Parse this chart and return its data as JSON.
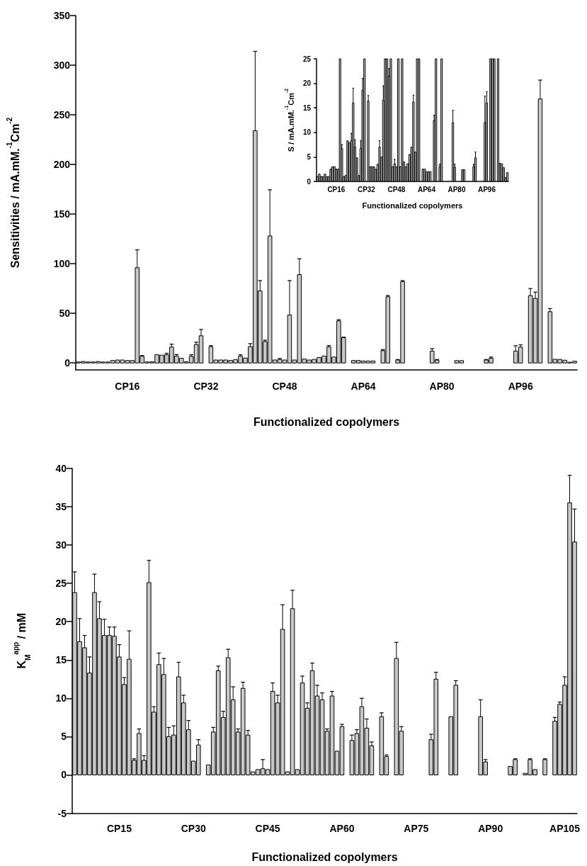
{
  "chart_data": [
    {
      "type": "bar",
      "xlabel": "Functionalized copolymers",
      "ylabel": "Sensitivities / mA.mM.$^{-1}$Cm$^{-2}$",
      "color": "#c8c8c8",
      "ylim": [
        -7,
        350
      ],
      "yticks": [
        0,
        50,
        100,
        150,
        200,
        250,
        300,
        350
      ],
      "categories": [
        null,
        null,
        null,
        null,
        null,
        null,
        null,
        null,
        null,
        null,
        "CP16",
        null,
        null,
        null,
        null,
        null,
        null,
        null,
        null,
        null,
        null,
        null,
        null,
        null,
        null,
        null,
        "CP32",
        null,
        null,
        null,
        null,
        null,
        null,
        null,
        null,
        null,
        null,
        null,
        null,
        null,
        null,
        null,
        "CP48",
        null,
        null,
        null,
        null,
        null,
        null,
        null,
        null,
        null,
        null,
        null,
        null,
        null,
        null,
        null,
        "AP64",
        null,
        null,
        null,
        null,
        null,
        null,
        null,
        null,
        null,
        null,
        null,
        null,
        null,
        null,
        null,
        "AP80",
        null,
        null,
        null,
        null,
        null,
        null,
        null,
        null,
        null,
        null,
        null,
        null,
        null,
        null,
        null,
        "AP96",
        null,
        null,
        null,
        null,
        null,
        null,
        null,
        null,
        null,
        null,
        null
      ],
      "values": [
        1,
        1.5,
        1,
        1,
        1.5,
        1,
        1,
        2.5,
        3,
        3,
        2.5,
        2.5,
        96,
        6.7,
        1,
        1.2,
        8.3,
        7.9,
        8.3,
        16,
        7,
        4.8,
        1.2,
        6.7,
        18.6,
        27.4,
        null,
        16.4,
        3,
        3,
        3,
        2.5,
        3.5,
        7,
        5,
        16.5,
        234,
        72.6,
        21.5,
        128,
        3,
        3.6,
        3,
        48.3,
        3,
        89,
        4,
        3,
        3.6,
        5.5,
        7,
        16.2,
        6,
        42.4,
        25.5,
        null,
        2.5,
        2.5,
        2,
        2,
        2,
        null,
        12.4,
        66.7,
        null,
        3,
        82,
        null,
        null,
        null,
        null,
        null,
        12,
        2.9,
        null,
        null,
        null,
        2.4,
        2.4,
        null,
        null,
        null,
        null,
        3,
        4.8,
        null,
        null,
        null,
        null,
        12,
        16,
        null,
        67.9,
        65,
        266,
        null,
        51.7,
        3.7,
        3.6,
        2.8,
        0.8,
        1.8
      ],
      "errors": [
        null,
        null,
        null,
        null,
        null,
        null,
        null,
        null,
        null,
        null,
        null,
        null,
        [
          96,
          114
        ],
        [
          6.7,
          7.5
        ],
        null,
        null,
        null,
        null,
        [
          8.3,
          9.8
        ],
        [
          16,
          19
        ],
        [
          7,
          8.5
        ],
        null,
        null,
        [
          6.7,
          8.3
        ],
        [
          18.6,
          21
        ],
        [
          27.4,
          33.8
        ],
        null,
        [
          16.4,
          17.5
        ],
        null,
        null,
        null,
        null,
        null,
        [
          7,
          8.3
        ],
        null,
        [
          16.5,
          19.5
        ],
        [
          234,
          314
        ],
        [
          72.6,
          83
        ],
        [
          21.5,
          23
        ],
        [
          128,
          174.5
        ],
        null,
        [
          3.6,
          4.5
        ],
        null,
        [
          48.3,
          83
        ],
        null,
        [
          89,
          105
        ],
        null,
        null,
        null,
        null,
        null,
        [
          16.2,
          17.6
        ],
        null,
        [
          42.4,
          43.6
        ],
        [
          25.5,
          26
        ],
        null,
        null,
        null,
        null,
        null,
        null,
        null,
        [
          12.4,
          13.5
        ],
        [
          66.7,
          68
        ],
        null,
        [
          3,
          3.5
        ],
        [
          82,
          83
        ],
        null,
        null,
        null,
        null,
        null,
        [
          12,
          14.5
        ],
        [
          2.9,
          3.5
        ],
        null,
        null,
        null,
        null,
        null,
        null,
        null,
        null,
        null,
        [
          3,
          3.5
        ],
        [
          4.8,
          6
        ],
        null,
        null,
        null,
        null,
        [
          12,
          17.4
        ],
        [
          16,
          18.3
        ],
        null,
        [
          67.9,
          75
        ],
        [
          65,
          71.4
        ],
        [
          266,
          285
        ],
        null,
        [
          51.7,
          54.8
        ],
        null,
        null,
        null,
        null,
        null
      ]
    },
    {
      "type": "bar",
      "xlabel": "Functionalized copolymers",
      "ylabel": "S / mA.mM.$^{-1}$Cm$^{-2}$",
      "color": "#c8c8c8",
      "ylim": [
        0,
        25
      ],
      "yticks": [
        0,
        5,
        10,
        15,
        20,
        25
      ],
      "categories": [
        null,
        null,
        null,
        null,
        null,
        null,
        null,
        null,
        null,
        null,
        "CP16",
        null,
        null,
        null,
        null,
        null,
        null,
        null,
        null,
        null,
        null,
        null,
        null,
        null,
        null,
        null,
        "CP32",
        null,
        null,
        null,
        null,
        null,
        null,
        null,
        null,
        null,
        null,
        null,
        null,
        null,
        null,
        null,
        "CP48",
        null,
        null,
        null,
        null,
        null,
        null,
        null,
        null,
        null,
        null,
        null,
        null,
        null,
        null,
        null,
        "AP64",
        null,
        null,
        null,
        null,
        null,
        null,
        null,
        null,
        null,
        null,
        null,
        null,
        null,
        null,
        null,
        "AP80",
        null,
        null,
        null,
        null,
        null,
        null,
        null,
        null,
        null,
        null,
        null,
        null,
        null,
        null,
        null,
        "AP96",
        null,
        null,
        null,
        null,
        null,
        null,
        null,
        null,
        null,
        null,
        null
      ],
      "values": [
        1,
        1.5,
        1,
        1,
        1.5,
        1,
        1,
        2.5,
        3,
        3,
        2.5,
        2.5,
        25,
        6.7,
        1,
        1.2,
        8.3,
        7.9,
        8.3,
        16,
        7,
        4.8,
        1.2,
        6.7,
        18.6,
        25,
        null,
        16.4,
        3,
        3,
        3,
        2.5,
        3.5,
        7,
        5,
        16.5,
        25,
        25,
        21.5,
        25,
        3,
        3.6,
        3,
        25,
        3,
        25,
        4,
        3,
        3.6,
        5.5,
        7,
        16.2,
        6,
        25,
        25,
        null,
        2.5,
        2.5,
        2,
        2,
        2,
        null,
        12.4,
        25,
        null,
        3,
        25,
        null,
        null,
        null,
        null,
        null,
        12,
        2.9,
        null,
        null,
        null,
        2.4,
        2.4,
        null,
        null,
        null,
        null,
        3,
        4.8,
        null,
        null,
        null,
        null,
        12,
        16,
        null,
        25,
        25,
        25,
        null,
        25,
        3.7,
        3.6,
        2.8,
        0.8,
        1.8
      ],
      "errors": [
        null,
        null,
        null,
        null,
        null,
        null,
        null,
        null,
        null,
        null,
        null,
        null,
        null,
        [
          6.7,
          7.5
        ],
        null,
        null,
        null,
        null,
        [
          8.3,
          9.8
        ],
        [
          16,
          19
        ],
        [
          7,
          8.5
        ],
        null,
        null,
        [
          6.7,
          8.3
        ],
        [
          18.6,
          21
        ],
        null,
        null,
        [
          16.4,
          17.5
        ],
        null,
        null,
        null,
        null,
        null,
        [
          7,
          8.3
        ],
        null,
        [
          16.5,
          19.5
        ],
        null,
        null,
        [
          21.5,
          23
        ],
        null,
        null,
        [
          3.6,
          4.5
        ],
        null,
        null,
        null,
        null,
        null,
        null,
        null,
        null,
        null,
        [
          16.2,
          17.6
        ],
        null,
        null,
        null,
        null,
        null,
        null,
        null,
        null,
        null,
        null,
        [
          12.4,
          13.5
        ],
        null,
        null,
        [
          3,
          3.5
        ],
        null,
        null,
        null,
        null,
        null,
        null,
        [
          12,
          14.5
        ],
        [
          2.9,
          3.5
        ],
        null,
        null,
        null,
        null,
        null,
        null,
        null,
        null,
        null,
        [
          3,
          3.5
        ],
        [
          4.8,
          6
        ],
        null,
        null,
        null,
        null,
        [
          12,
          17.4
        ],
        [
          16,
          18.3
        ],
        null,
        null,
        null,
        null,
        null,
        null,
        null,
        null,
        null,
        null,
        null
      ]
    },
    {
      "type": "bar",
      "xlabel": "Functionalized copolymers",
      "ylabel": "K$_{M}$$^{app}$ / mM",
      "color": "#c8c8c8",
      "ylim": [
        -5,
        40
      ],
      "yticks": [
        -5,
        0,
        5,
        10,
        15,
        20,
        25,
        30,
        35,
        40
      ],
      "categories": [
        null,
        null,
        null,
        null,
        null,
        null,
        null,
        null,
        null,
        "CP15",
        null,
        null,
        null,
        null,
        null,
        null,
        null,
        null,
        null,
        null,
        null,
        null,
        null,
        null,
        "CP30",
        null,
        null,
        null,
        null,
        null,
        null,
        null,
        null,
        null,
        null,
        null,
        null,
        null,
        null,
        "CP45",
        null,
        null,
        null,
        null,
        null,
        null,
        null,
        null,
        null,
        null,
        null,
        null,
        null,
        null,
        "AP60",
        null,
        null,
        null,
        null,
        null,
        null,
        null,
        null,
        null,
        null,
        null,
        null,
        null,
        null,
        "AP75",
        null,
        null,
        null,
        null,
        null,
        null,
        null,
        null,
        null,
        null,
        null,
        null,
        null,
        null,
        "AP90",
        null,
        null,
        null,
        null,
        null,
        null,
        null,
        null,
        null,
        null,
        null,
        null,
        null,
        null,
        "AP105",
        null,
        null
      ],
      "values": [
        23.8,
        17.4,
        16.6,
        13.3,
        23.8,
        20.4,
        18.2,
        18.2,
        18.1,
        15.4,
        11.8,
        15.1,
        1.9,
        5.4,
        1.9,
        25.1,
        8.2,
        14.4,
        13.1,
        5,
        5.2,
        12.8,
        9.4,
        5.9,
        1.8,
        3.9,
        null,
        1.3,
        5.6,
        13.6,
        7.5,
        15.3,
        9.8,
        5.6,
        11.3,
        5.2,
        0.4,
        0.7,
        0.8,
        0.7,
        10.9,
        9.4,
        19,
        0.4,
        21.7,
        0.7,
        12,
        8.7,
        13.6,
        10.3,
        9.8,
        5.7,
        10.3,
        3.1,
        6.3,
        null,
        4.5,
        5.4,
        8.9,
        6.1,
        3.8,
        null,
        7.6,
        2.4,
        null,
        15.2,
        5.7,
        null,
        null,
        null,
        null,
        null,
        4.6,
        12.5,
        null,
        null,
        7.6,
        11.7,
        null,
        null,
        null,
        null,
        7.6,
        1.7,
        null,
        null,
        null,
        null,
        1.1,
        2,
        null,
        0.2,
        2,
        0.7,
        null,
        2,
        null,
        7,
        9.2,
        11.7,
        35.5,
        30.4
      ],
      "errors": [
        [
          23.8,
          26.5
        ],
        [
          17.4,
          20.4
        ],
        [
          16.6,
          18.2
        ],
        [
          13.3,
          15.4
        ],
        [
          23.8,
          26.2
        ],
        [
          20.4,
          22.6
        ],
        [
          18.2,
          20.3
        ],
        [
          18.2,
          19.3
        ],
        [
          18.1,
          19.3
        ],
        [
          15.4,
          17
        ],
        [
          11.8,
          12.7
        ],
        [
          15.1,
          18.8
        ],
        [
          1.9,
          2.1
        ],
        [
          5.4,
          6
        ],
        [
          1.9,
          2.5
        ],
        [
          25.1,
          28
        ],
        [
          8.2,
          8.9
        ],
        [
          14.4,
          15.9
        ],
        [
          13.1,
          15.2
        ],
        [
          5,
          6.2
        ],
        [
          5.2,
          6.4
        ],
        [
          12.8,
          14.7
        ],
        [
          9.4,
          10.4
        ],
        [
          5.9,
          7.1
        ],
        null,
        [
          3.9,
          4.6
        ],
        null,
        null,
        [
          5.6,
          6.2
        ],
        [
          13.6,
          14.2
        ],
        [
          7.5,
          8.3
        ],
        [
          15.3,
          16.4
        ],
        [
          9.8,
          11.5
        ],
        [
          5.6,
          6
        ],
        [
          11.3,
          12.1
        ],
        [
          5.2,
          5.8
        ],
        null,
        null,
        [
          0.8,
          2
        ],
        null,
        [
          10.9,
          12
        ],
        [
          9.4,
          10.4
        ],
        [
          19,
          22.2
        ],
        null,
        [
          21.7,
          24.1
        ],
        null,
        [
          12,
          12.9
        ],
        [
          8.7,
          9.4
        ],
        [
          13.6,
          14.6
        ],
        [
          10.3,
          11.7
        ],
        [
          9.8,
          10.7
        ],
        [
          5.7,
          6
        ],
        [
          10.3,
          10.9
        ],
        null,
        [
          6.3,
          6.6
        ],
        null,
        [
          4.5,
          5.2
        ],
        [
          5.4,
          5.9
        ],
        [
          8.9,
          10
        ],
        [
          6.1,
          7.3
        ],
        [
          3.8,
          4.3
        ],
        null,
        [
          7.6,
          8.1
        ],
        [
          2.4,
          2.6
        ],
        null,
        [
          15.2,
          17.3
        ],
        [
          5.7,
          6.3
        ],
        null,
        null,
        null,
        null,
        null,
        [
          4.6,
          5.3
        ],
        [
          12.5,
          13.4
        ],
        null,
        null,
        null,
        [
          11.7,
          12.3
        ],
        null,
        null,
        null,
        null,
        [
          7.6,
          9.8
        ],
        [
          1.7,
          2
        ],
        null,
        null,
        null,
        null,
        null,
        [
          2,
          2.1
        ],
        null,
        null,
        [
          2,
          2.1
        ],
        null,
        null,
        [
          2,
          2.1
        ],
        null,
        [
          7,
          7.5
        ],
        [
          9.2,
          9.5
        ],
        [
          11.7,
          12.8
        ],
        [
          35.5,
          39.1
        ],
        [
          30.4,
          34.7
        ]
      ]
    }
  ]
}
